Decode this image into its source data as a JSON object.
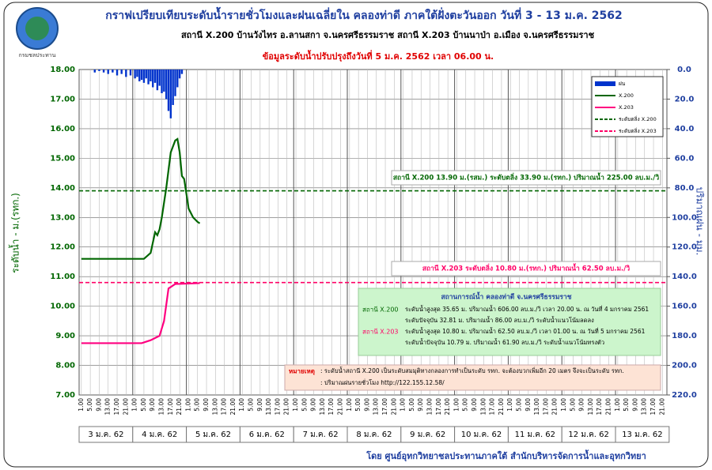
{
  "chart_data": {
    "type": "line",
    "title": "กราฟเปรียบเทียบระดับน้ำรายชั่วโมงและฝนเฉลี่ยใน คลองท่าดี ภาคใต้ฝั่งตะวันออก วันที่ 3 - 13 ม.ค. 2562",
    "subtitle": "สถานี X.200 บ้านวังไทร อ.ลานสกา จ.นครศรีธรรมราช สถานี X.203 บ้านนาป่า อ.เมือง จ.นครศรีธรรมราช",
    "update_note": "ข้อมูลระดับน้ำปรับปรุงถึงวันที่ 5 ม.ค. 2562 เวลา 06.00 น.",
    "logo_text": "กรมชลประทาน",
    "ylabel": "ระดับน้ำ - ม.(รทก.)",
    "y2label": "ปริมาณฝน - มม.",
    "footer": "โดย ศูนย์อุทกวิทยาชลประทานภาคใต้ สำนักบริหารจัดการน้ำและอุทกวิทยา",
    "xlim": [
      -1,
      262
    ],
    "ylim": [
      7,
      18
    ],
    "yticks": [
      {
        "value": 7,
        "label": "7.00"
      },
      {
        "value": 8,
        "label": "8.00"
      },
      {
        "value": 9,
        "label": "9.00"
      },
      {
        "value": 10,
        "label": "10.00"
      },
      {
        "value": 11,
        "label": "11.00"
      },
      {
        "value": 12,
        "label": "12.00"
      },
      {
        "value": 13,
        "label": "13.00"
      },
      {
        "value": 14,
        "label": "14.00"
      },
      {
        "value": 15,
        "label": "15.00"
      },
      {
        "value": 16,
        "label": "16.00"
      },
      {
        "value": 17,
        "label": "17.00"
      },
      {
        "value": 18,
        "label": "18.00"
      }
    ],
    "y2lim": [
      0,
      220
    ],
    "y2_inverted": true,
    "y2ticks": [
      {
        "value": 0,
        "label": "0.0"
      },
      {
        "value": 20,
        "label": "20.0"
      },
      {
        "value": 40,
        "label": "40.0"
      },
      {
        "value": 60,
        "label": "60.0"
      },
      {
        "value": 80,
        "label": "80.0"
      },
      {
        "value": 100,
        "label": "100.0"
      },
      {
        "value": 120,
        "label": "120.0"
      },
      {
        "value": 140,
        "label": "140.0"
      },
      {
        "value": 160,
        "label": "160.0"
      },
      {
        "value": 180,
        "label": "180.0"
      },
      {
        "value": 200,
        "label": "200.0"
      },
      {
        "value": 220,
        "label": "220.0"
      }
    ],
    "grid": true,
    "date_labels": [
      "3 ม.ค. 62",
      "4 ม.ค. 62",
      "5 ม.ค. 62",
      "6 ม.ค. 62",
      "7 ม.ค. 62",
      "8 ม.ค. 62",
      "9 ม.ค. 62",
      "10 ม.ค. 62",
      "11 ม.ค. 62",
      "12 ม.ค. 62",
      "13 ม.ค. 62"
    ],
    "hour_labels": [
      "1.00",
      "5.00",
      "9.00",
      "13.00",
      "17.00",
      "21.00"
    ],
    "series": [
      {
        "name": "ฝน",
        "type": "bar",
        "axis": "y2",
        "color": "#0033cc",
        "x": [
          6,
          8,
          10,
          12,
          14,
          16,
          18,
          20,
          22,
          24,
          25,
          26,
          27,
          28,
          29,
          30,
          31,
          32,
          33,
          34,
          35,
          36,
          37,
          38,
          39,
          40,
          41,
          42,
          43,
          44,
          45
        ],
        "values": [
          2,
          1,
          2,
          3,
          2,
          4,
          3,
          5,
          4,
          6,
          5,
          8,
          7,
          9,
          6,
          10,
          8,
          12,
          9,
          14,
          11,
          16,
          15,
          20,
          28,
          33,
          24,
          18,
          12,
          6,
          3
        ]
      },
      {
        "name": "X.200",
        "color": "#006600",
        "x": [
          0,
          28,
          31,
          33,
          34,
          35,
          36,
          38,
          40,
          42,
          43,
          44,
          45,
          46,
          47,
          48,
          50,
          52,
          53
        ],
        "values": [
          11.6,
          11.6,
          11.8,
          12.5,
          12.4,
          12.6,
          13.0,
          14.0,
          15.2,
          15.6,
          15.65,
          15.2,
          14.4,
          14.3,
          13.8,
          13.3,
          13.0,
          12.85,
          12.8
        ]
      },
      {
        "name": "X.203",
        "color": "#ff0080",
        "x": [
          0,
          27,
          31,
          35,
          37,
          39,
          42,
          53
        ],
        "values": [
          8.75,
          8.75,
          8.85,
          9.0,
          9.5,
          10.6,
          10.75,
          10.78
        ]
      }
    ],
    "bank_lines": [
      {
        "name": "ระดับตลิ่ง X.200",
        "value": 13.9,
        "color": "#006600",
        "note": "สถานี X.200 13.90 ม.(รสม.) ระดับตลิ่ง 33.90 ม.(รทก.) ปริมาณน้ำ 225.00 ลบ.ม./วิ"
      },
      {
        "name": "ระดับตลิ่ง X.203",
        "value": 10.8,
        "color": "#ff0066",
        "note": "สถานี X.203 ระดับตลิ่ง 10.80 ม.(รทก.) ปริมาณน้ำ 62.50 ลบ.ม./วิ"
      }
    ],
    "situation": {
      "title": "สถานการณ์น้ำ คลองท่าดี จ.นครศรีธรรมราช",
      "rows": [
        {
          "station": "สถานี X.200",
          "lines": [
            "ระดับน้ำสูงสุด 35.65 ม. ปริมาณน้ำ 606.00 ลบ.ม./วิ เวลา 20.00 น. ณ วันที่ 4 มกราคม 2561",
            "ระดับปัจจุบัน 32.81 ม. ปริมาณน้ำ 86.00 ลบ.ม./วิ ระดับน้ำแนวโน้มลดลง"
          ]
        },
        {
          "station": "สถานี X.203",
          "lines": [
            "ระดับน้ำสูงสุด 10.80 ม. ปริมาณน้ำ 62.50 ลบ.ม./วิ เวลา 01.00 น. ณ วันที่ 5 มกราคม 2561",
            "ระดับน้ำปัจจุบัน 10.79 ม. ปริมาณน้ำ 61.90 ลบ.ม./วิ ระดับน้ำแนวโน้มทรงตัว"
          ]
        }
      ]
    },
    "remark": {
      "label": "หมายเหตุ",
      "lines": [
        ": ระดับน้ำสถานี X.200 เป็นระดับสมมุติทางกลองการทำเป็นระดับ รทก. จะต้องบวกเพิ่มอีก 20 เมตร จึงจะเป็นระดับ รทก.",
        ": ปริมาณฝนรายชั่วโมง http://122.155.12.58/"
      ]
    }
  }
}
